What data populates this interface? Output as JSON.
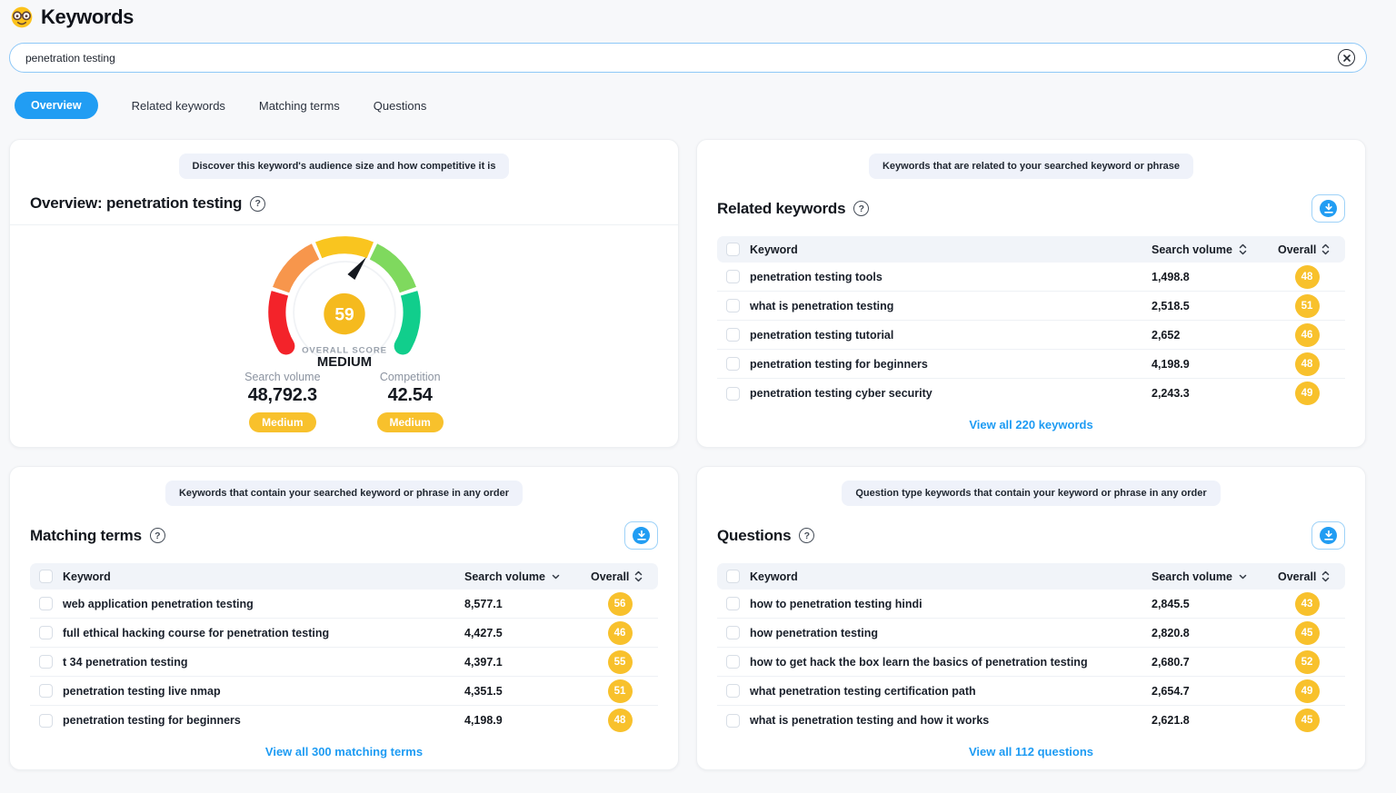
{
  "header": {
    "title": "Keywords",
    "emoji": "nerd-face"
  },
  "search": {
    "value": "penetration testing"
  },
  "tabs": [
    {
      "label": "Overview",
      "active": true
    },
    {
      "label": "Related keywords",
      "active": false
    },
    {
      "label": "Matching terms",
      "active": false
    },
    {
      "label": "Questions",
      "active": false
    }
  ],
  "colors": {
    "accent_blue": "#219df3",
    "badge_amber": "#f8c12c",
    "gauge_red": "#f3232a",
    "gauge_orange": "#f7964c",
    "gauge_amber": "#f9c51f",
    "gauge_light_green": "#7fd95e",
    "gauge_green": "#11ce8c"
  },
  "overview_card": {
    "note": "Discover this keyword's audience size and how competitive it is",
    "title": "Overview: penetration testing",
    "chart_data": {
      "type": "gauge",
      "value": 59,
      "min": 0,
      "max": 100,
      "center_value": "59",
      "score_label": "OVERALL SCORE",
      "score_level": "MEDIUM",
      "segments": [
        "red",
        "orange",
        "amber",
        "light-green",
        "green"
      ]
    },
    "stats": [
      {
        "label": "Search volume",
        "value": "48,792.3",
        "badge": "Medium"
      },
      {
        "label": "Competition",
        "value": "42.54",
        "badge": "Medium"
      }
    ]
  },
  "related_card": {
    "note": "Keywords that are related to your searched keyword or phrase",
    "title": "Related keywords",
    "columns": {
      "keyword": "Keyword",
      "volume": "Search volume",
      "overall": "Overall"
    },
    "rows": [
      {
        "keyword": "penetration testing tools",
        "volume": "1,498.8",
        "overall": "48"
      },
      {
        "keyword": "what is penetration testing",
        "volume": "2,518.5",
        "overall": "51"
      },
      {
        "keyword": "penetration testing tutorial",
        "volume": "2,652",
        "overall": "46"
      },
      {
        "keyword": "penetration testing for beginners",
        "volume": "4,198.9",
        "overall": "48"
      },
      {
        "keyword": "penetration testing cyber security",
        "volume": "2,243.3",
        "overall": "49"
      }
    ],
    "view_all": "View all 220 keywords"
  },
  "matching_card": {
    "note": "Keywords that contain your searched keyword or phrase in any order",
    "title": "Matching terms",
    "columns": {
      "keyword": "Keyword",
      "volume": "Search volume",
      "overall": "Overall"
    },
    "rows": [
      {
        "keyword": "web application penetration testing",
        "volume": "8,577.1",
        "overall": "56"
      },
      {
        "keyword": "full ethical hacking course for penetration testing",
        "volume": "4,427.5",
        "overall": "46"
      },
      {
        "keyword": "t 34 penetration testing",
        "volume": "4,397.1",
        "overall": "55"
      },
      {
        "keyword": "penetration testing live nmap",
        "volume": "4,351.5",
        "overall": "51"
      },
      {
        "keyword": "penetration testing for beginners",
        "volume": "4,198.9",
        "overall": "48"
      }
    ],
    "view_all": "View all 300 matching terms"
  },
  "questions_card": {
    "note": "Question type keywords that contain your keyword or phrase in any order",
    "title": "Questions",
    "columns": {
      "keyword": "Keyword",
      "volume": "Search volume",
      "overall": "Overall"
    },
    "rows": [
      {
        "keyword": "how to penetration testing hindi",
        "volume": "2,845.5",
        "overall": "43"
      },
      {
        "keyword": "how penetration testing",
        "volume": "2,820.8",
        "overall": "45"
      },
      {
        "keyword": "how to get hack the box learn the basics of penetration testing",
        "volume": "2,680.7",
        "overall": "52"
      },
      {
        "keyword": "what penetration testing certification path",
        "volume": "2,654.7",
        "overall": "49"
      },
      {
        "keyword": "what is penetration testing and how it works",
        "volume": "2,621.8",
        "overall": "45"
      }
    ],
    "view_all": "View all 112 questions"
  }
}
